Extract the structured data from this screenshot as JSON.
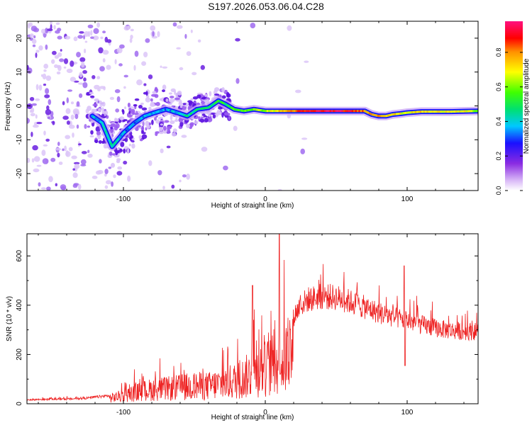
{
  "figure": {
    "title": "S197.2026.053.06.04.C28"
  },
  "colors": {
    "snr_line": "#ee2222",
    "track_low": "#1a00d8",
    "track_mid": "#22ee77",
    "track_high": "#ff3a2a",
    "noise": "#7a2ff0"
  },
  "chart_data": [
    {
      "type": "heatmap",
      "title": "S197.2026.053.06.04.C28",
      "xlabel": "Height of straight line (km)",
      "ylabel": "Frequency (Hz)",
      "xlim": [
        -168,
        150
      ],
      "ylim": [
        -25,
        25
      ],
      "xticks": [
        -100,
        0,
        100
      ],
      "yticks": [
        -20,
        -10,
        0,
        10,
        20
      ],
      "colorbar": {
        "label": "Normalized spectral amplitude",
        "range": [
          0,
          1
        ],
        "ticks": [
          "0.0",
          "0.2",
          "0.4",
          "0.6",
          "0.8"
        ],
        "colormap": "rainbow (white-violet-blue-cyan-green-yellow-red-magenta)"
      },
      "frequency_track": {
        "x": [
          -122,
          -115,
          -108,
          -100,
          -92,
          -85,
          -78,
          -70,
          -62,
          -55,
          -48,
          -40,
          -33,
          -28,
          -22,
          -15,
          -8,
          0,
          10,
          20,
          30,
          40,
          50,
          60,
          70,
          75,
          80,
          85,
          90,
          95,
          100,
          110,
          120,
          130,
          140,
          150
        ],
        "y": [
          -3,
          -5,
          -12,
          -8,
          -5,
          -3,
          -2,
          -1,
          -2,
          -3,
          -1,
          -0.5,
          1.5,
          0.5,
          -1,
          -1.5,
          -1,
          -1.5,
          -1.5,
          -1.5,
          -1.5,
          -1.5,
          -1.5,
          -1.5,
          -1.5,
          -2.5,
          -3,
          -3,
          -2.5,
          -2.3,
          -2,
          -1.7,
          -1.7,
          -1.7,
          -1.6,
          -1.5
        ],
        "amplitude": [
          0.35,
          0.4,
          0.45,
          0.35,
          0.3,
          0.35,
          0.4,
          0.35,
          0.4,
          0.45,
          0.5,
          0.45,
          0.55,
          0.5,
          0.55,
          0.6,
          0.6,
          0.65,
          0.75,
          0.85,
          0.9,
          0.95,
          0.95,
          0.9,
          0.85,
          0.8,
          0.85,
          0.8,
          0.75,
          0.7,
          0.7,
          0.75,
          0.7,
          0.75,
          0.7,
          0.6
        ]
      }
    },
    {
      "type": "line",
      "xlabel": "Height of straight line (km)",
      "ylabel": "SNR (10 * v/v)",
      "xlim": [
        -168,
        150
      ],
      "ylim": [
        0,
        690
      ],
      "xticks": [
        -100,
        0,
        100
      ],
      "yticks": [
        0,
        200,
        400,
        600
      ],
      "series": [
        {
          "name": "SNR",
          "envelope_x": [
            -168,
            -150,
            -130,
            -110,
            -100,
            -90,
            -80,
            -70,
            -60,
            -50,
            -40,
            -30,
            -20,
            -15,
            -10,
            -5,
            0,
            5,
            10,
            15,
            20,
            25,
            30,
            40,
            50,
            60,
            70,
            80,
            90,
            100,
            110,
            120,
            130,
            140,
            150
          ],
          "envelope_y": [
            20,
            22,
            25,
            40,
            60,
            85,
            105,
            110,
            120,
            130,
            130,
            150,
            170,
            190,
            220,
            240,
            260,
            280,
            300,
            340,
            400,
            450,
            475,
            490,
            485,
            465,
            440,
            415,
            395,
            380,
            360,
            345,
            335,
            330,
            330
          ],
          "spikes": [
            {
              "x": -9,
              "y": 480
            },
            {
              "x": 10,
              "y": 690
            },
            {
              "x": 10.5,
              "y": 120
            },
            {
              "x": 98,
              "y": 560
            },
            {
              "x": 98.5,
              "y": 155
            }
          ]
        }
      ]
    }
  ]
}
